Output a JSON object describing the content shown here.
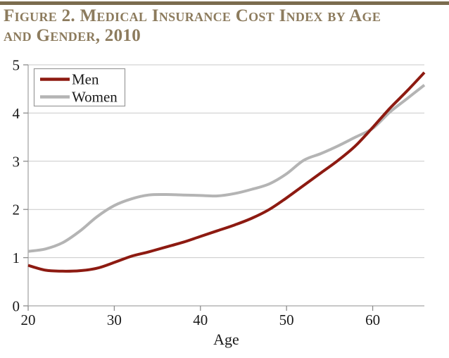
{
  "header": {
    "title_line1": "Figure 2. Medical Insurance Cost Index by Age",
    "title_line2": "and Gender, 2010",
    "title_color": "#8c7b5d",
    "accent_bar_color": "#7b6c4e"
  },
  "chart_data": {
    "type": "line",
    "title": "Figure 2. Medical Insurance Cost Index by Age and Gender, 2010",
    "xlabel": "Age",
    "ylabel": "",
    "xlim": [
      20,
      66
    ],
    "ylim": [
      0,
      5
    ],
    "x_ticks": [
      20,
      30,
      40,
      50,
      60
    ],
    "y_ticks": [
      0,
      1,
      2,
      3,
      4,
      5
    ],
    "grid": "horizontal",
    "legend_position": "top-left",
    "legend_entries": [
      "Men",
      "Women"
    ],
    "x": [
      20,
      22,
      24,
      26,
      28,
      30,
      32,
      34,
      36,
      38,
      40,
      42,
      44,
      46,
      48,
      50,
      52,
      54,
      56,
      58,
      60,
      62,
      64,
      66
    ],
    "series": [
      {
        "name": "Men",
        "color": "#8d1a11",
        "values": [
          0.84,
          0.74,
          0.72,
          0.73,
          0.78,
          0.9,
          1.03,
          1.12,
          1.22,
          1.32,
          1.44,
          1.56,
          1.68,
          1.82,
          2.0,
          2.24,
          2.5,
          2.76,
          3.02,
          3.32,
          3.7,
          4.1,
          4.46,
          4.84
        ]
      },
      {
        "name": "Women",
        "color": "#b4b4b4",
        "values": [
          1.13,
          1.18,
          1.31,
          1.55,
          1.85,
          2.08,
          2.22,
          2.3,
          2.31,
          2.3,
          2.29,
          2.28,
          2.33,
          2.42,
          2.53,
          2.74,
          3.02,
          3.16,
          3.32,
          3.5,
          3.68,
          4.02,
          4.3,
          4.58
        ]
      }
    ],
    "colors": {
      "grid": "#c9c9c9",
      "axis": "#a6a6a6",
      "tick": "#8c8c8c",
      "text": "#1a1a1a",
      "legend_border": "#9a9a9a"
    }
  }
}
